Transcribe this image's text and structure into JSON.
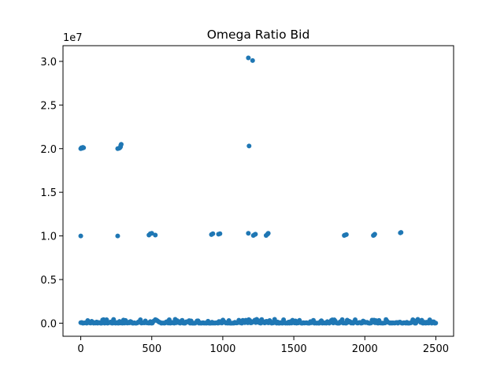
{
  "chart_data": {
    "type": "scatter",
    "title": "Omega Ratio Bid",
    "xlabel": "",
    "ylabel": "",
    "y_offset_label": "1e7",
    "xlim": [
      -125,
      2625
    ],
    "ylim": [
      -1500000,
      31800000
    ],
    "x_ticks": [
      0,
      500,
      1000,
      1500,
      2000,
      2500
    ],
    "y_ticks": [
      0,
      5000000,
      10000000,
      15000000,
      20000000,
      25000000,
      30000000
    ],
    "y_tick_labels": [
      "0.0",
      "0.5",
      "1.0",
      "1.5",
      "2.0",
      "2.5",
      "3.0"
    ],
    "grid": false,
    "legend": "none",
    "color": "#1f77b4",
    "series": [
      {
        "x": [
          0,
          5,
          10,
          15,
          20,
          260,
          270,
          275,
          280,
          285,
          282,
          1180,
          1185,
          1210,
          0,
          260,
          480,
          490,
          500,
          525,
          920,
          930,
          970,
          980,
          1180,
          1215,
          1225,
          1230,
          1305,
          1315,
          1320,
          1855,
          1860,
          1870,
          2060,
          2065,
          2070,
          2250,
          2255
        ],
        "y": [
          20000000,
          20100000,
          20050000,
          20150000,
          20100000,
          20000000,
          20050000,
          20100000,
          20200000,
          20500000,
          20400000,
          30400000,
          20300000,
          30100000,
          10000000,
          10000000,
          10100000,
          10250000,
          10300000,
          10100000,
          10150000,
          10250000,
          10200000,
          10250000,
          10300000,
          10050000,
          10150000,
          10200000,
          10050000,
          10200000,
          10300000,
          10050000,
          10100000,
          10150000,
          10050000,
          10100000,
          10200000,
          10350000,
          10400000
        ]
      }
    ],
    "baseline_cluster": {
      "description_values": "dense points near y=0 across x=0..2500",
      "x_start": 0,
      "x_end": 2500,
      "x_step": 7,
      "y_max": 450000
    }
  }
}
